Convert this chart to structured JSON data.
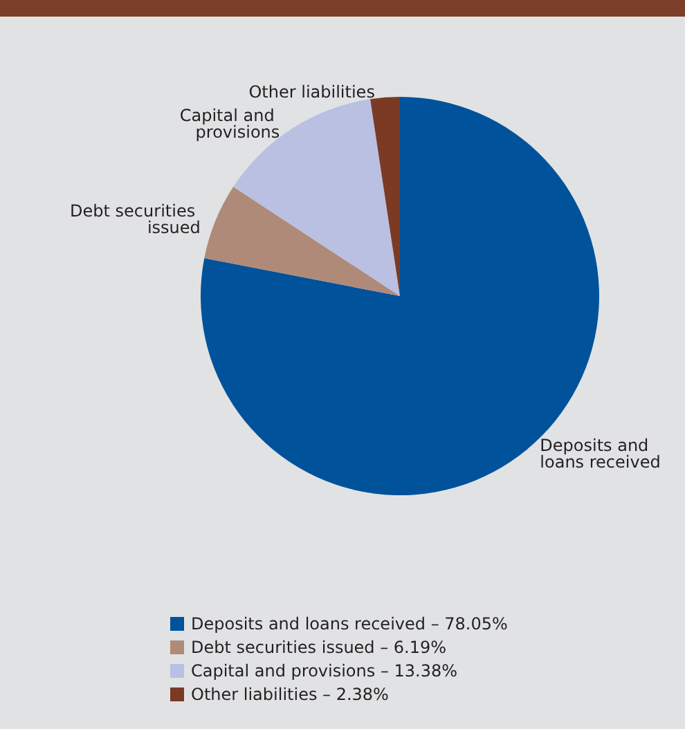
{
  "chart_data": {
    "type": "pie",
    "categories": [
      "Deposits and loans received – 78.05%",
      "Debt securities issued – 6.19%",
      "Capital and provisions – 13.38%",
      "Other liabilities – 2.38%"
    ],
    "values": [
      78.05,
      6.19,
      13.38,
      2.38
    ],
    "colors": [
      "#00529b",
      "#b08a78",
      "#b9c0e1",
      "#7b3a24"
    ],
    "annotations": [
      "Deposits and loans received",
      "Debt securities issued",
      "Capital and provisions",
      "Other liabilities"
    ],
    "legend": "bottom"
  }
}
